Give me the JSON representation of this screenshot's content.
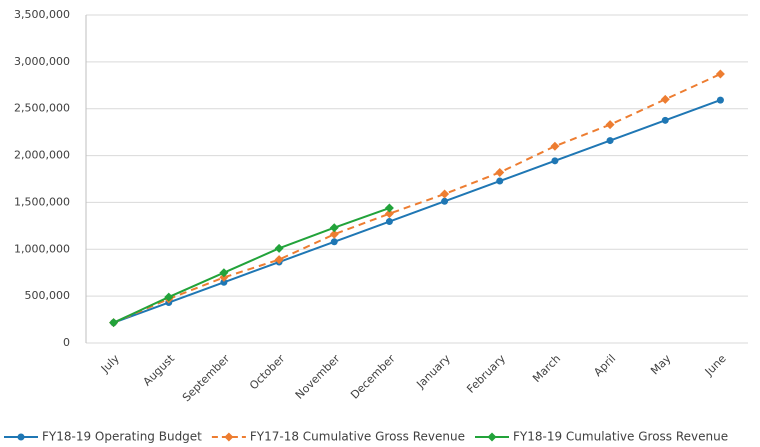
{
  "chart_data": {
    "type": "line",
    "categories": [
      "July",
      "August",
      "September",
      "October",
      "November",
      "December",
      "January",
      "February",
      "March",
      "April",
      "May",
      "June"
    ],
    "series": [
      {
        "name": "FY18-19 Operating Budget",
        "color": "#1f77b4",
        "marker": "circle",
        "dashed": false,
        "values": [
          217000,
          432000,
          648000,
          864000,
          1080000,
          1296000,
          1512000,
          1728000,
          1944000,
          2160000,
          2376000,
          2592000
        ]
      },
      {
        "name": "FY17-18 Cumulative Gross Revenue",
        "color": "#ed7d31",
        "marker": "diamond",
        "dashed": true,
        "values": [
          217000,
          470000,
          700000,
          890000,
          1160000,
          1380000,
          1590000,
          1820000,
          2100000,
          2330000,
          2600000,
          2870000
        ]
      },
      {
        "name": "FY18-19 Cumulative Gross Revenue",
        "color": "#22a33a",
        "marker": "diamond",
        "dashed": false,
        "values": [
          217000,
          490000,
          750000,
          1010000,
          1230000,
          1440000,
          null,
          null,
          null,
          null,
          null,
          null
        ]
      }
    ],
    "ylim": [
      0,
      3500000
    ],
    "yticks": [
      0,
      {
        "value": 500000,
        "label": "500,000"
      },
      {
        "value": 1000000,
        "label": "1,000,000"
      },
      {
        "value": 1500000,
        "label": "1,500,000"
      },
      {
        "value": 2000000,
        "label": "2,000,000"
      },
      {
        "value": 2500000,
        "label": "2,500,000"
      },
      {
        "value": 3000000,
        "label": "3,000,000"
      },
      {
        "value": 3500000,
        "label": "3,500,000"
      }
    ],
    "grid": true,
    "legend": "bottom"
  }
}
